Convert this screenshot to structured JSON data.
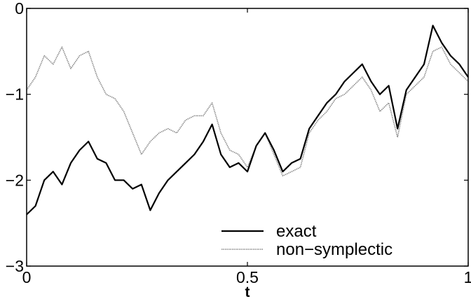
{
  "chart_data": {
    "type": "line",
    "xlabel": "t",
    "ylabel": "",
    "xlim": [
      0,
      1
    ],
    "ylim": [
      -3,
      0
    ],
    "xticks": [
      0,
      0.5,
      1
    ],
    "xtick_labels": [
      "0",
      "0.5",
      "1"
    ],
    "yticks": [
      0,
      -1,
      -2,
      -3
    ],
    "ytick_labels": [
      "0",
      "−1",
      "−2",
      "−3"
    ],
    "grid": false,
    "legend_position": "bottom-right",
    "x": [
      0,
      0.02,
      0.04,
      0.06,
      0.08,
      0.1,
      0.12,
      0.14,
      0.16,
      0.18,
      0.2,
      0.22,
      0.24,
      0.26,
      0.28,
      0.3,
      0.32,
      0.34,
      0.36,
      0.38,
      0.4,
      0.42,
      0.44,
      0.46,
      0.48,
      0.5,
      0.52,
      0.54,
      0.56,
      0.58,
      0.6,
      0.62,
      0.64,
      0.66,
      0.68,
      0.7,
      0.72,
      0.74,
      0.76,
      0.78,
      0.8,
      0.82,
      0.84,
      0.86,
      0.88,
      0.9,
      0.92,
      0.94,
      0.96,
      0.98,
      1.0
    ],
    "series": [
      {
        "name": "exact",
        "color": "#000000",
        "style": "solid",
        "values": [
          -2.4,
          -2.3,
          -2.0,
          -1.9,
          -2.05,
          -1.8,
          -1.65,
          -1.55,
          -1.75,
          -1.8,
          -2.0,
          -2.0,
          -2.1,
          -2.05,
          -2.35,
          -2.15,
          -2.0,
          -1.9,
          -1.8,
          -1.7,
          -1.55,
          -1.35,
          -1.7,
          -1.85,
          -1.8,
          -1.9,
          -1.6,
          -1.45,
          -1.65,
          -1.9,
          -1.8,
          -1.75,
          -1.4,
          -1.25,
          -1.1,
          -1.0,
          -0.85,
          -0.75,
          -0.65,
          -0.85,
          -1.0,
          -0.9,
          -1.4,
          -0.95,
          -0.8,
          -0.65,
          -0.2,
          -0.4,
          -0.55,
          -0.65,
          -0.8
        ]
      },
      {
        "name": "non−symplectic",
        "color": "#888888",
        "style": "dotted",
        "values": [
          -0.95,
          -0.8,
          -0.55,
          -0.65,
          -0.45,
          -0.7,
          -0.55,
          -0.5,
          -0.8,
          -1.0,
          -1.05,
          -1.2,
          -1.45,
          -1.7,
          -1.55,
          -1.45,
          -1.4,
          -1.45,
          -1.3,
          -1.25,
          -1.25,
          -1.1,
          -1.45,
          -1.65,
          -1.7,
          -1.85,
          -1.6,
          -1.45,
          -1.7,
          -1.95,
          -1.9,
          -1.85,
          -1.45,
          -1.3,
          -1.2,
          -1.05,
          -1.0,
          -0.9,
          -0.8,
          -0.95,
          -1.2,
          -1.1,
          -1.5,
          -1.0,
          -0.9,
          -0.8,
          -0.5,
          -0.45,
          -0.65,
          -0.75,
          -0.85
        ]
      }
    ]
  }
}
